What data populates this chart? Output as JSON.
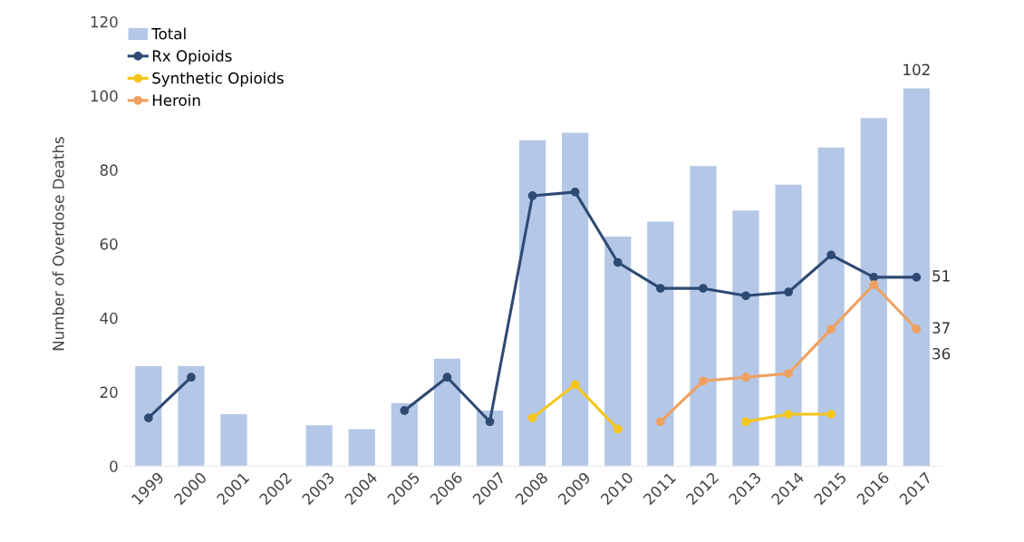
{
  "chart_data": {
    "type": "bar",
    "ylabel": "Number of Overdose Deaths",
    "categories": [
      "1999",
      "2000",
      "2001",
      "2002",
      "2003",
      "2004",
      "2005",
      "2006",
      "2007",
      "2008",
      "2009",
      "2010",
      "2011",
      "2012",
      "2013",
      "2014",
      "2015",
      "2016",
      "2017"
    ],
    "series": [
      {
        "name": "Total",
        "color": "#b4c7e7",
        "values": [
          27,
          27,
          14,
          null,
          11,
          10,
          17,
          29,
          15,
          88,
          90,
          62,
          66,
          81,
          69,
          76,
          86,
          94,
          102
        ],
        "value_labels": [
          null,
          null,
          null,
          null,
          null,
          null,
          null,
          null,
          null,
          null,
          null,
          null,
          null,
          null,
          null,
          null,
          null,
          null,
          "102"
        ]
      },
      {
        "name": "Rx Opioids",
        "type": "line",
        "color": "#2e4a73",
        "values": [
          13,
          24,
          null,
          null,
          null,
          null,
          15,
          24,
          12,
          73,
          74,
          55,
          48,
          48,
          46,
          47,
          57,
          51,
          51
        ],
        "value_labels": [
          null,
          null,
          null,
          null,
          null,
          null,
          null,
          null,
          null,
          null,
          null,
          null,
          null,
          null,
          null,
          null,
          null,
          null,
          "51"
        ]
      },
      {
        "name": "Synthetic Opioids",
        "type": "line",
        "color": "#f5c518",
        "values": [
          null,
          null,
          null,
          null,
          null,
          null,
          null,
          null,
          null,
          13,
          22,
          10,
          null,
          null,
          12,
          14,
          14,
          null,
          null
        ]
      },
      {
        "name": "Heroin",
        "type": "line",
        "color": "#f0a060",
        "values": [
          null,
          null,
          null,
          null,
          null,
          null,
          null,
          null,
          null,
          null,
          null,
          null,
          12,
          23,
          24,
          25,
          37,
          49,
          37
        ],
        "value_labels": [
          null,
          null,
          null,
          null,
          null,
          null,
          null,
          null,
          null,
          null,
          null,
          null,
          null,
          null,
          null,
          null,
          null,
          null,
          "37"
        ]
      }
    ],
    "annotations": [
      "36"
    ],
    "ylim": [
      0,
      120
    ],
    "yticks": [
      0,
      20,
      40,
      60,
      80,
      100,
      120
    ],
    "grid": false,
    "legend": "top left",
    "marker": "circle"
  }
}
